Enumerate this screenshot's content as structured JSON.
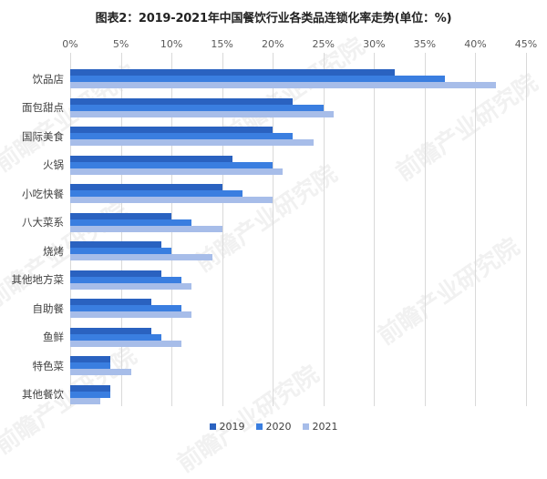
{
  "title": "图表2：2019-2021年中国餐饮行业各类品连锁化率走势(单位：%)",
  "watermark": "前瞻产业研究院",
  "colors": {
    "2019": "#2a62c0",
    "2020": "#3a7ee0",
    "2021": "#a7bde9",
    "grid": "#d9d9d9"
  },
  "x_ticks": [
    "0%",
    "5%",
    "10%",
    "15%",
    "20%",
    "25%",
    "30%",
    "35%",
    "40%",
    "45%"
  ],
  "legend": [
    {
      "label": "2019",
      "color": "#2a62c0"
    },
    {
      "label": "2020",
      "color": "#3a7ee0"
    },
    {
      "label": "2021",
      "color": "#a7bde9"
    }
  ],
  "chart_data": {
    "type": "bar",
    "orientation": "horizontal",
    "title": "图表2：2019-2021年中国餐饮行业各类品连锁化率走势(单位：%)",
    "xlabel": "",
    "ylabel": "",
    "xlim": [
      0,
      45
    ],
    "x_tick_step": 5,
    "grid": true,
    "legend_position": "bottom",
    "categories": [
      "饮品店",
      "面包甜点",
      "国际美食",
      "火锅",
      "小吃快餐",
      "八大菜系",
      "烧烤",
      "其他地方菜",
      "自助餐",
      "鱼鲜",
      "特色菜",
      "其他餐饮"
    ],
    "series": [
      {
        "name": "2019",
        "values": [
          32,
          22,
          20,
          16,
          15,
          10,
          9,
          9,
          8,
          8,
          4,
          4
        ]
      },
      {
        "name": "2020",
        "values": [
          37,
          25,
          22,
          20,
          17,
          12,
          10,
          11,
          11,
          9,
          4,
          4
        ]
      },
      {
        "name": "2021",
        "values": [
          42,
          26,
          24,
          21,
          20,
          15,
          14,
          12,
          12,
          11,
          6,
          3
        ]
      }
    ]
  }
}
